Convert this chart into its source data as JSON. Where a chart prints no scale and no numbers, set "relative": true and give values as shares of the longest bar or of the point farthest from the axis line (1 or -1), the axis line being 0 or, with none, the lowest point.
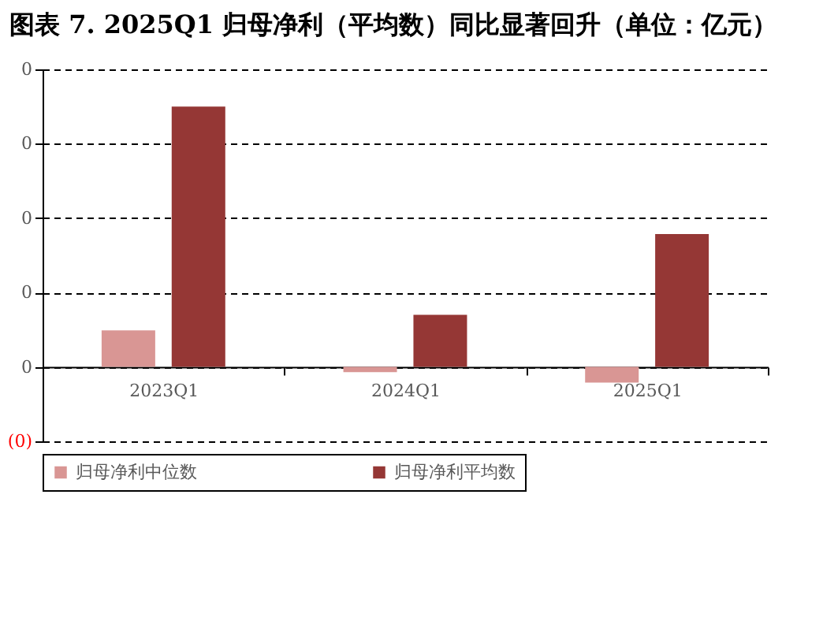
{
  "chart_data": {
    "type": "bar",
    "title": "图表 7. 2025Q1 归母净利（平均数）同比显著回升（单位：亿元）",
    "categories": [
      "2023Q1",
      "2024Q1",
      "2025Q1"
    ],
    "series": [
      {
        "name": "归母净利中位数",
        "color": "#d99694",
        "values": [
          0.14,
          -0.02,
          -0.06
        ]
      },
      {
        "name": "归母净利平均数",
        "color": "#953735",
        "values": [
          1,
          0.2,
          0.51
        ]
      }
    ],
    "relative": true,
    "annotations": [
      "0",
      "0",
      "0",
      "0",
      "0",
      "(0)"
    ],
    "grid": "y",
    "legend": "bottom"
  }
}
